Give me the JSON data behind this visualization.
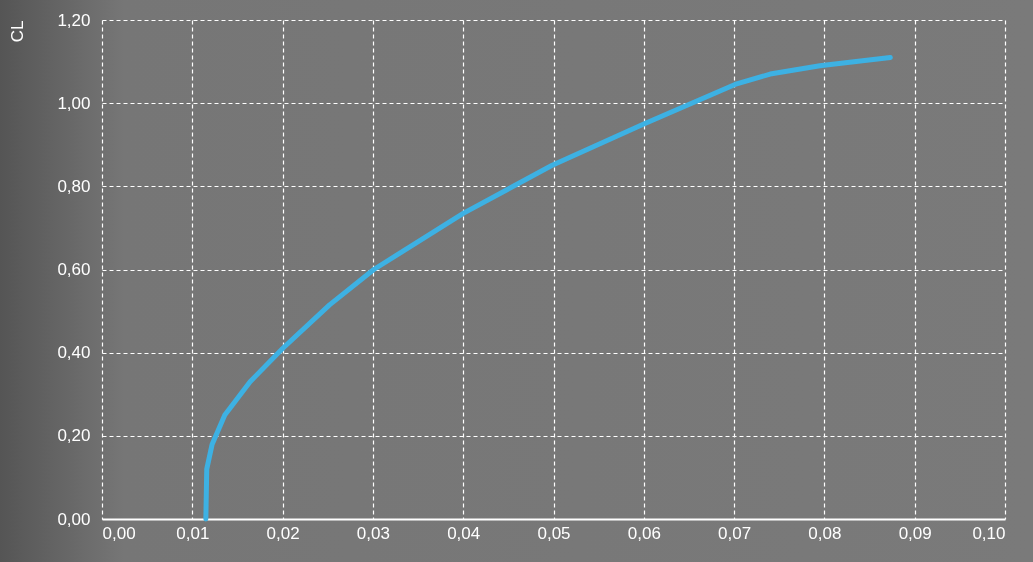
{
  "chart_data": {
    "type": "line",
    "ylabel": "CL",
    "x": [
      0.0115,
      0.0116,
      0.0122,
      0.0136,
      0.0164,
      0.02,
      0.0252,
      0.0301,
      0.04,
      0.0498,
      0.06,
      0.0701,
      0.074,
      0.0795,
      0.0873
    ],
    "series": [
      {
        "color": "#3db1e3",
        "values": [
          0.0,
          0.12,
          0.18,
          0.25,
          0.33,
          0.41,
          0.515,
          0.6,
          0.735,
          0.85,
          0.95,
          1.045,
          1.07,
          1.09,
          1.11
        ]
      }
    ],
    "xlim": [
      0,
      0.1
    ],
    "xticks": [
      {
        "value": 0,
        "label": "0,00"
      },
      {
        "value": 0.01,
        "label": "0,01"
      },
      {
        "value": 0.02,
        "label": "0,02"
      },
      {
        "value": 0.03,
        "label": "0,03"
      },
      {
        "value": 0.04,
        "label": "0,04"
      },
      {
        "value": 0.05,
        "label": "0,05"
      },
      {
        "value": 0.06,
        "label": "0,06"
      },
      {
        "value": 0.07,
        "label": "0,07"
      },
      {
        "value": 0.08,
        "label": "0,08"
      },
      {
        "value": 0.09,
        "label": "0,09"
      },
      {
        "value": 0.1,
        "label": "0,10"
      }
    ],
    "ylim": [
      0,
      1.2
    ],
    "yticks": [
      {
        "value": 0,
        "label": "0,00"
      },
      {
        "value": 0.2,
        "label": "0,20"
      },
      {
        "value": 0.4,
        "label": "0,40"
      },
      {
        "value": 0.6,
        "label": "0,60"
      },
      {
        "value": 0.8,
        "label": "0,80"
      },
      {
        "value": 1.0,
        "label": "1,00"
      },
      {
        "value": 1.2,
        "label": "1,20"
      }
    ],
    "grid": true,
    "marker": "none",
    "line_style": "solid"
  }
}
